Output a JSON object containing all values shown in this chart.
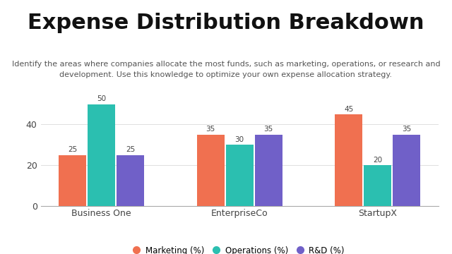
{
  "title": "Expense Distribution Breakdown",
  "subtitle": "Identify the areas where companies allocate the most funds, such as marketing, operations, or research and\ndevelopment. Use this knowledge to optimize your own expense allocation strategy.",
  "categories": [
    "Business One",
    "EnterpriseCo",
    "StartupX"
  ],
  "series": {
    "Marketing (%)": [
      25,
      35,
      45
    ],
    "Operations (%)": [
      50,
      30,
      20
    ],
    "R&D (%)": [
      25,
      35,
      35
    ]
  },
  "colors": {
    "Marketing (%)": "#F07050",
    "Operations (%)": "#2BBFB0",
    "R&D (%)": "#7060C8"
  },
  "ylim": [
    0,
    55
  ],
  "yticks": [
    0,
    20,
    40
  ],
  "bar_width": 0.2,
  "background_color": "#FFFFFF",
  "title_fontsize": 22,
  "subtitle_fontsize": 8,
  "axis_tick_fontsize": 9,
  "bar_label_fontsize": 7.5,
  "legend_fontsize": 8.5
}
